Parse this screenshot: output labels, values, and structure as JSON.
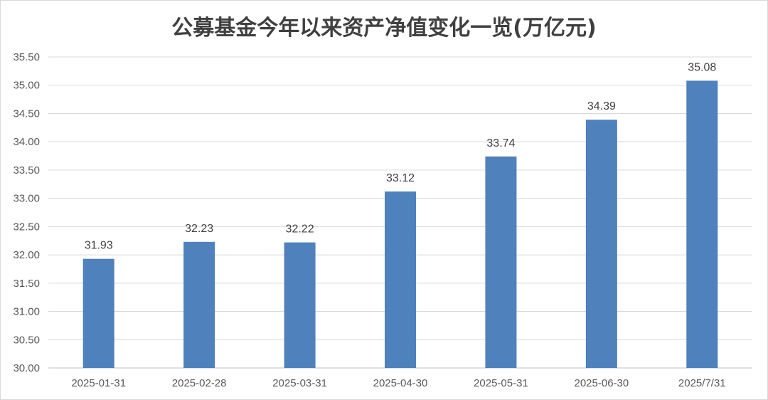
{
  "title": "公募基金今年以来资产净值变化一览(万亿元)",
  "colors": {
    "bar": "#4f81bd",
    "grid": "#d9d9d9",
    "axis": "#bfbfbf",
    "text": "#595959"
  },
  "chart_data": {
    "type": "bar",
    "title": "公募基金今年以来资产净值变化一览(万亿元)",
    "xlabel": "",
    "ylabel": "",
    "categories": [
      "2025-01-31",
      "2025-02-28",
      "2025-03-31",
      "2025-04-30",
      "2025-05-31",
      "2025-06-30",
      "2025/7/31"
    ],
    "values": [
      31.93,
      32.23,
      32.22,
      33.12,
      33.74,
      34.39,
      35.08
    ],
    "value_labels": [
      "31.93",
      "32.23",
      "32.22",
      "33.12",
      "33.74",
      "34.39",
      "35.08"
    ],
    "ylim": [
      30.0,
      35.5
    ],
    "yticks": [
      "30.00",
      "30.50",
      "31.00",
      "31.50",
      "32.00",
      "32.50",
      "33.00",
      "33.50",
      "34.00",
      "34.50",
      "35.00",
      "35.50"
    ],
    "grid": true,
    "legend": "none"
  }
}
